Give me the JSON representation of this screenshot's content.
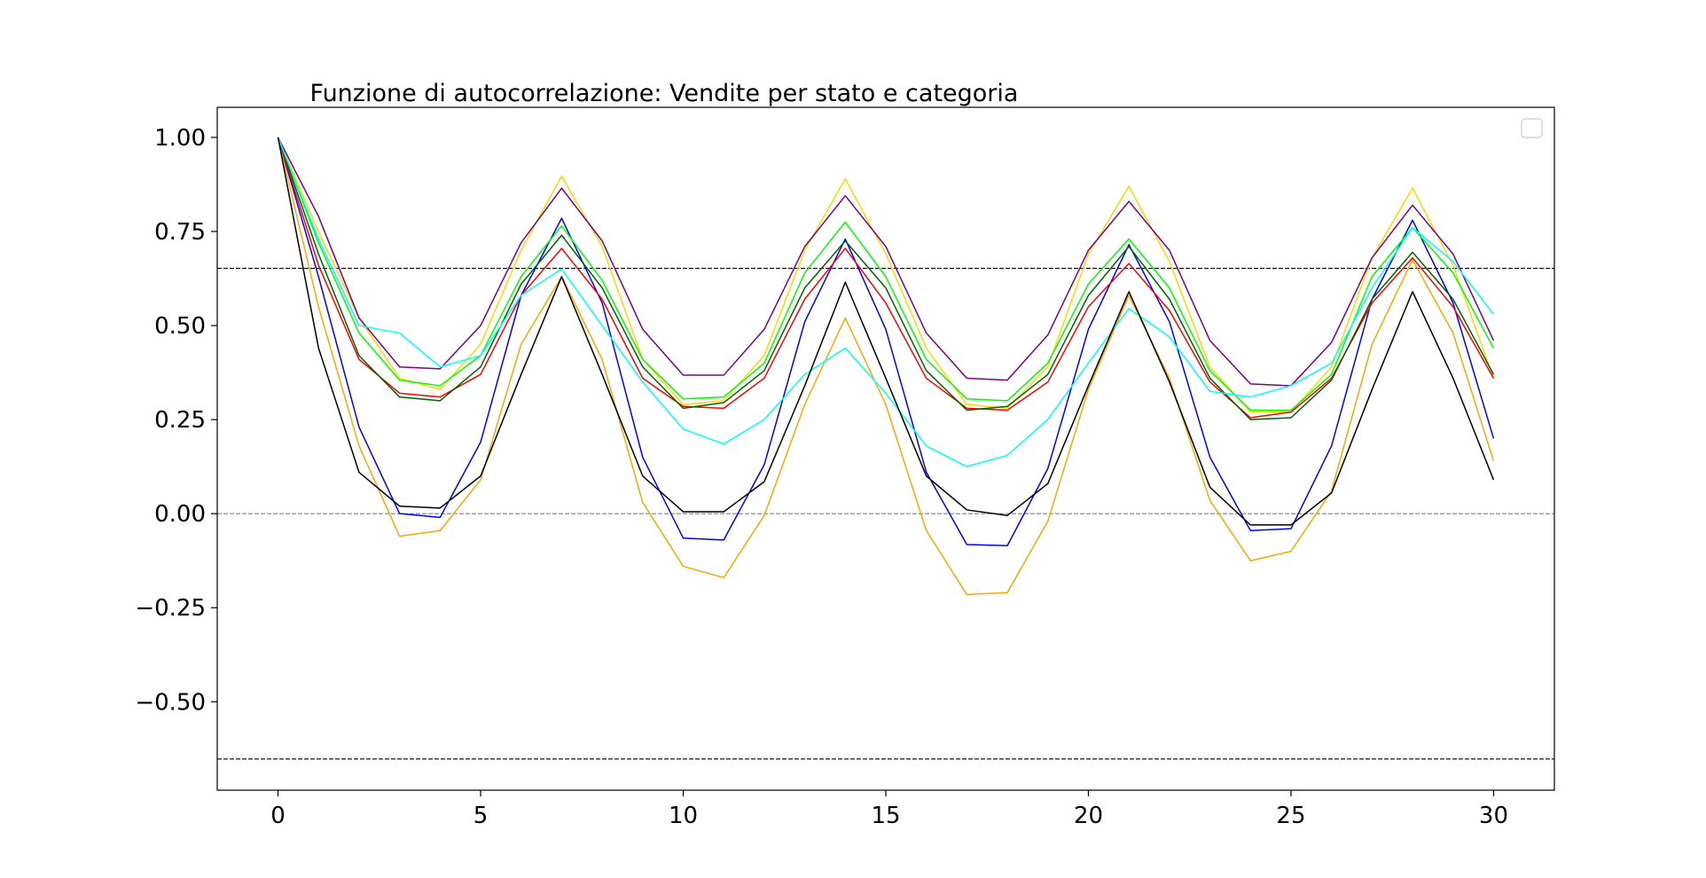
{
  "chart_data": {
    "type": "line",
    "title": "Funzione di autocorrelazione: Vendite per stato e categoria",
    "xlabel": "",
    "ylabel": "",
    "xlim": [
      -1.5,
      31.5
    ],
    "ylim": [
      -0.735,
      1.08
    ],
    "xticks": [
      0,
      5,
      10,
      15,
      20,
      25,
      30
    ],
    "xtick_labels": [
      "0",
      "5",
      "10",
      "15",
      "20",
      "25",
      "30"
    ],
    "yticks": [
      1.0,
      0.75,
      0.5,
      0.25,
      0.0,
      -0.25,
      -0.5
    ],
    "ytick_labels": [
      "1.00",
      "0.75",
      "0.50",
      "0.25",
      "0.00",
      "−0.25",
      "−0.50"
    ],
    "grid": false,
    "legend": {
      "placement": "top-right",
      "entries": []
    },
    "reference_lines": [
      {
        "y": 0.652,
        "style": "dashed",
        "color": "#000000"
      },
      {
        "y": -0.652,
        "style": "dashed",
        "color": "#000000"
      },
      {
        "y": 0.0,
        "style": "dashed",
        "color": "#808080"
      }
    ],
    "x": [
      0,
      1,
      2,
      3,
      4,
      5,
      6,
      7,
      8,
      9,
      10,
      11,
      12,
      13,
      14,
      15,
      16,
      17,
      18,
      19,
      20,
      21,
      22,
      23,
      24,
      25,
      26,
      27,
      28,
      29,
      30
    ],
    "series": [
      {
        "color": "#ffd700",
        "values": [
          1.0,
          0.75,
          0.52,
          0.36,
          0.33,
          0.45,
          0.7,
          0.897,
          0.71,
          0.41,
          0.29,
          0.3,
          0.42,
          0.7,
          0.89,
          0.69,
          0.44,
          0.29,
          0.28,
          0.39,
          0.69,
          0.87,
          0.67,
          0.39,
          0.27,
          0.27,
          0.39,
          0.68,
          0.865,
          0.66,
          0.36
        ]
      },
      {
        "color": "#800080",
        "values": [
          1.0,
          0.79,
          0.52,
          0.39,
          0.385,
          0.5,
          0.72,
          0.865,
          0.725,
          0.49,
          0.368,
          0.368,
          0.49,
          0.71,
          0.845,
          0.71,
          0.48,
          0.36,
          0.355,
          0.475,
          0.7,
          0.83,
          0.7,
          0.46,
          0.345,
          0.34,
          0.455,
          0.68,
          0.82,
          0.69,
          0.46
        ]
      },
      {
        "color": "#0000ff",
        "values": [
          1.0,
          0.63,
          0.23,
          0.0,
          -0.01,
          0.19,
          0.58,
          0.785,
          0.56,
          0.15,
          -0.065,
          -0.07,
          0.13,
          0.51,
          0.73,
          0.49,
          0.11,
          -0.082,
          -0.085,
          0.12,
          0.49,
          0.715,
          0.51,
          0.15,
          -0.045,
          -0.04,
          0.18,
          0.57,
          0.78,
          0.56,
          0.2
        ]
      },
      {
        "color": "#ffa500",
        "values": [
          1.0,
          0.55,
          0.18,
          -0.06,
          -0.045,
          0.09,
          0.45,
          0.63,
          0.41,
          0.03,
          -0.14,
          -0.17,
          -0.005,
          0.29,
          0.52,
          0.29,
          -0.045,
          -0.215,
          -0.21,
          -0.02,
          0.33,
          0.58,
          0.36,
          0.035,
          -0.125,
          -0.1,
          0.06,
          0.45,
          0.675,
          0.48,
          0.14
        ]
      },
      {
        "color": "#ff0000",
        "values": [
          1.0,
          0.66,
          0.41,
          0.32,
          0.31,
          0.37,
          0.58,
          0.705,
          0.57,
          0.36,
          0.285,
          0.28,
          0.36,
          0.57,
          0.705,
          0.56,
          0.36,
          0.28,
          0.275,
          0.35,
          0.55,
          0.665,
          0.54,
          0.35,
          0.255,
          0.27,
          0.36,
          0.56,
          0.68,
          0.55,
          0.36
        ]
      },
      {
        "color": "#00ff00",
        "values": [
          1.0,
          0.72,
          0.48,
          0.355,
          0.34,
          0.42,
          0.63,
          0.765,
          0.62,
          0.41,
          0.305,
          0.31,
          0.4,
          0.64,
          0.775,
          0.63,
          0.41,
          0.305,
          0.3,
          0.4,
          0.61,
          0.73,
          0.6,
          0.38,
          0.275,
          0.275,
          0.37,
          0.63,
          0.76,
          0.64,
          0.44
        ]
      },
      {
        "color": "#006400",
        "values": [
          1.0,
          0.69,
          0.42,
          0.31,
          0.3,
          0.39,
          0.61,
          0.74,
          0.6,
          0.39,
          0.28,
          0.295,
          0.38,
          0.6,
          0.725,
          0.6,
          0.38,
          0.275,
          0.285,
          0.37,
          0.58,
          0.71,
          0.57,
          0.36,
          0.25,
          0.255,
          0.355,
          0.57,
          0.695,
          0.57,
          0.37
        ]
      },
      {
        "color": "#00ffff",
        "values": [
          1.0,
          0.73,
          0.5,
          0.48,
          0.39,
          0.42,
          0.58,
          0.65,
          0.5,
          0.35,
          0.225,
          0.185,
          0.25,
          0.37,
          0.44,
          0.32,
          0.18,
          0.125,
          0.155,
          0.25,
          0.4,
          0.545,
          0.47,
          0.325,
          0.31,
          0.34,
          0.4,
          0.6,
          0.76,
          0.67,
          0.53
        ]
      },
      {
        "color": "#000000",
        "values": [
          1.0,
          0.44,
          0.11,
          0.02,
          0.015,
          0.1,
          0.37,
          0.63,
          0.37,
          0.1,
          0.005,
          0.005,
          0.085,
          0.34,
          0.615,
          0.36,
          0.1,
          0.01,
          -0.005,
          0.08,
          0.34,
          0.59,
          0.35,
          0.07,
          -0.03,
          -0.03,
          0.055,
          0.33,
          0.59,
          0.36,
          0.09
        ]
      }
    ]
  }
}
